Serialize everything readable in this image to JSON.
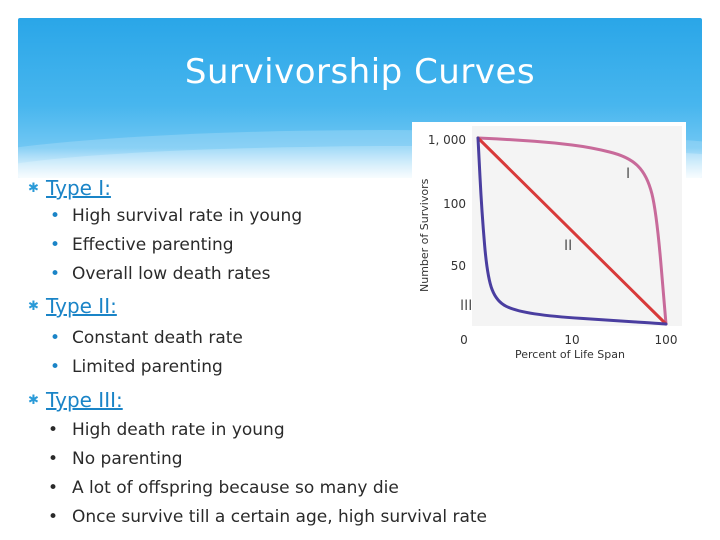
{
  "slide": {
    "title": "Survivorship Curves",
    "sections": [
      {
        "heading": "Type I:",
        "items": [
          "High survival rate in young",
          "Effective parenting",
          "Overall low death rates"
        ]
      },
      {
        "heading": "Type II:",
        "items": [
          "Constant death rate",
          "Limited parenting"
        ]
      },
      {
        "heading": "Type III:",
        "items": [
          "High death rate in young",
          "No parenting",
          "A lot of offspring because so many die",
          "Once survive till a certain age, high survival rate"
        ]
      }
    ]
  },
  "colors": {
    "banner": "#2aa6e8",
    "accent": "#1a84c7",
    "type1_curve": "#c86a9a",
    "type2_line": "#d83a3a",
    "type3_curve": "#4a3ea0"
  },
  "chart_data": {
    "type": "line",
    "xlabel": "Percent of Life Span",
    "ylabel": "Number of Survivors",
    "x_tick_labels": [
      "0",
      "10",
      "100"
    ],
    "y_tick_labels": [
      "1, 000",
      "100",
      "50"
    ],
    "series": [
      {
        "name": "I",
        "x": [
          0,
          20,
          40,
          60,
          80,
          90,
          95,
          100
        ],
        "y": [
          1000,
          990,
          975,
          950,
          900,
          800,
          600,
          0
        ]
      },
      {
        "name": "II",
        "x": [
          0,
          100
        ],
        "y": [
          1000,
          0
        ]
      },
      {
        "name": "III",
        "x": [
          0,
          2,
          5,
          10,
          20,
          40,
          70,
          100
        ],
        "y": [
          1000,
          600,
          250,
          120,
          70,
          40,
          20,
          0
        ]
      }
    ],
    "grid": false
  }
}
